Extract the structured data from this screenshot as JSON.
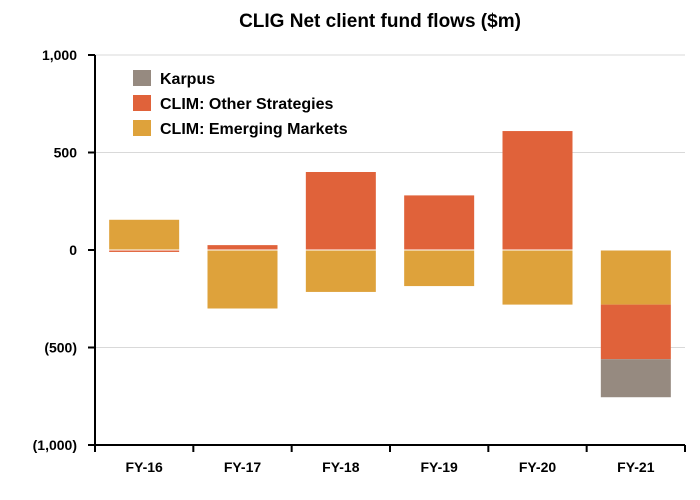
{
  "chart_data": {
    "type": "bar",
    "stacked": true,
    "title": "CLIG Net client fund flows ($m)",
    "xlabel": "",
    "ylabel": "",
    "categories": [
      "FY-16",
      "FY-17",
      "FY-18",
      "FY-19",
      "FY-20",
      "FY-21"
    ],
    "ylim": [
      -1000,
      1000
    ],
    "yticks": [
      1000,
      500,
      0,
      -500,
      -1000
    ],
    "ytick_labels": [
      "1,000",
      "500",
      "0",
      "(500)",
      "(1,000)"
    ],
    "grid": true,
    "legend_position": "top-left",
    "series": [
      {
        "name": "CLIM: Emerging Markets",
        "color": "#dea23b",
        "values": [
          155,
          -300,
          -215,
          -185,
          -280,
          -280
        ]
      },
      {
        "name": "CLIM: Other Strategies",
        "color": "#e0623a",
        "values": [
          -10,
          25,
          400,
          280,
          610,
          -280
        ]
      },
      {
        "name": "Karpus",
        "color": "#968a80",
        "values": [
          0,
          0,
          0,
          0,
          0,
          -195
        ]
      }
    ],
    "legend_order": [
      "Karpus",
      "CLIM: Other Strategies",
      "CLIM: Emerging Markets"
    ]
  }
}
